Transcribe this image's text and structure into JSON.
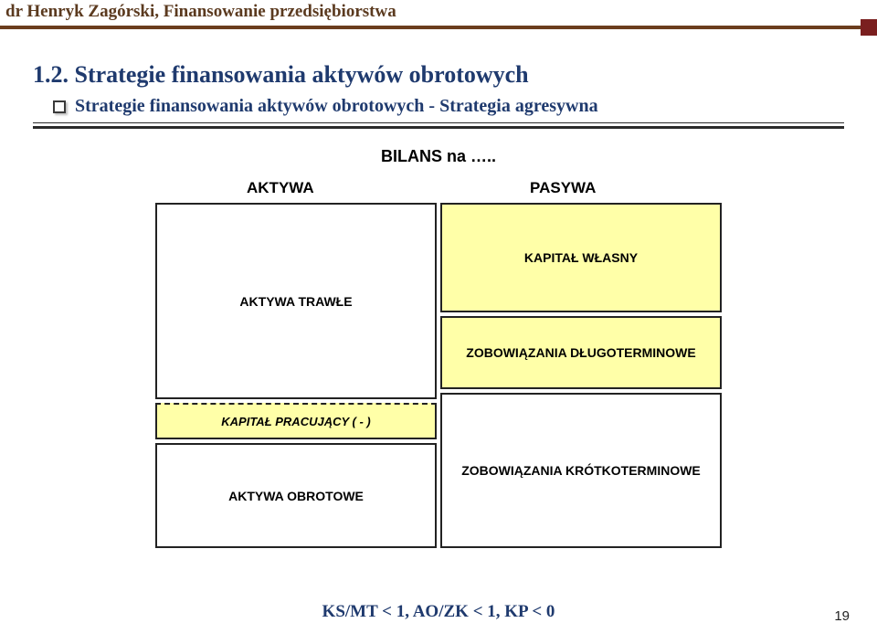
{
  "header": {
    "author_line": "dr Henryk Zagórski,  Finansowanie przedsiębiorstwa",
    "rule_color": "#6b3d1e",
    "stub_color": "#7a1f1f"
  },
  "title": "1.2. Strategie finansowania aktywów obrotowych",
  "bullet": "Strategie finansowania aktywów obrotowych - Strategia agresywna",
  "bilans_title": "BILANS na …..",
  "columns": {
    "left": "AKTYWA",
    "right": "PASYWA"
  },
  "cells": {
    "aktywa_trwale": "AKTYWA TRAWŁE",
    "kapital_pracujacy": "KAPITAŁ PRACUJĄCY ( - )",
    "aktywa_obrotowe": "AKTYWA OBROTOWE",
    "kapital_wlasny": "KAPITAŁ WŁASNY",
    "zob_dlugo": "ZOBOWIĄZANIA DŁUGOTERMINOWE",
    "zob_krotko": "ZOBOWIĄZANIA KRÓTKOTERMINOWE"
  },
  "layout": {
    "left_heights": [
      215,
      40,
      115
    ],
    "right_heights": [
      120,
      80,
      170
    ],
    "yellow_bg": "#ffffa8"
  },
  "footer_formula": "KS/MT < 1, AO/ZK < 1, KP < 0",
  "page_number": "19"
}
